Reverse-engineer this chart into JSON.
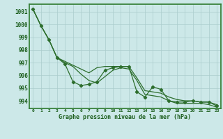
{
  "xlabel": "Graphe pression niveau de la mer (hPa)",
  "hours": [
    0,
    1,
    2,
    3,
    4,
    5,
    6,
    7,
    8,
    9,
    10,
    11,
    12,
    13,
    14,
    15,
    16,
    17,
    18,
    19,
    20,
    21,
    22,
    23
  ],
  "upper_line": [
    1001.2,
    999.9,
    998.8,
    997.4,
    997.1,
    996.8,
    996.5,
    996.2,
    996.6,
    996.7,
    996.7,
    996.7,
    996.7,
    995.8,
    994.8,
    994.7,
    994.6,
    994.3,
    994.1,
    994.0,
    994.0,
    993.9,
    993.9,
    993.7
  ],
  "middle_line": [
    1001.2,
    999.9,
    998.8,
    997.4,
    996.9,
    995.5,
    995.2,
    995.3,
    995.5,
    996.4,
    996.6,
    996.7,
    996.7,
    994.7,
    994.3,
    995.1,
    994.9,
    994.0,
    993.9,
    993.9,
    994.0,
    993.9,
    993.9,
    993.6
  ],
  "lower_line": [
    1001.2,
    999.9,
    998.8,
    997.4,
    997.0,
    996.7,
    996.1,
    995.6,
    995.4,
    995.9,
    996.4,
    996.6,
    996.5,
    995.6,
    994.5,
    994.4,
    994.3,
    994.0,
    993.8,
    993.8,
    993.8,
    993.8,
    993.7,
    993.5
  ],
  "ylim": [
    993.4,
    1001.6
  ],
  "yticks": [
    994,
    995,
    996,
    997,
    998,
    999,
    1000,
    1001
  ],
  "bg_color": "#cce8e8",
  "grid_color": "#aacccc",
  "line_color": "#2d6e2d",
  "text_color": "#1a5c1a",
  "border_color": "#2d7a2d"
}
